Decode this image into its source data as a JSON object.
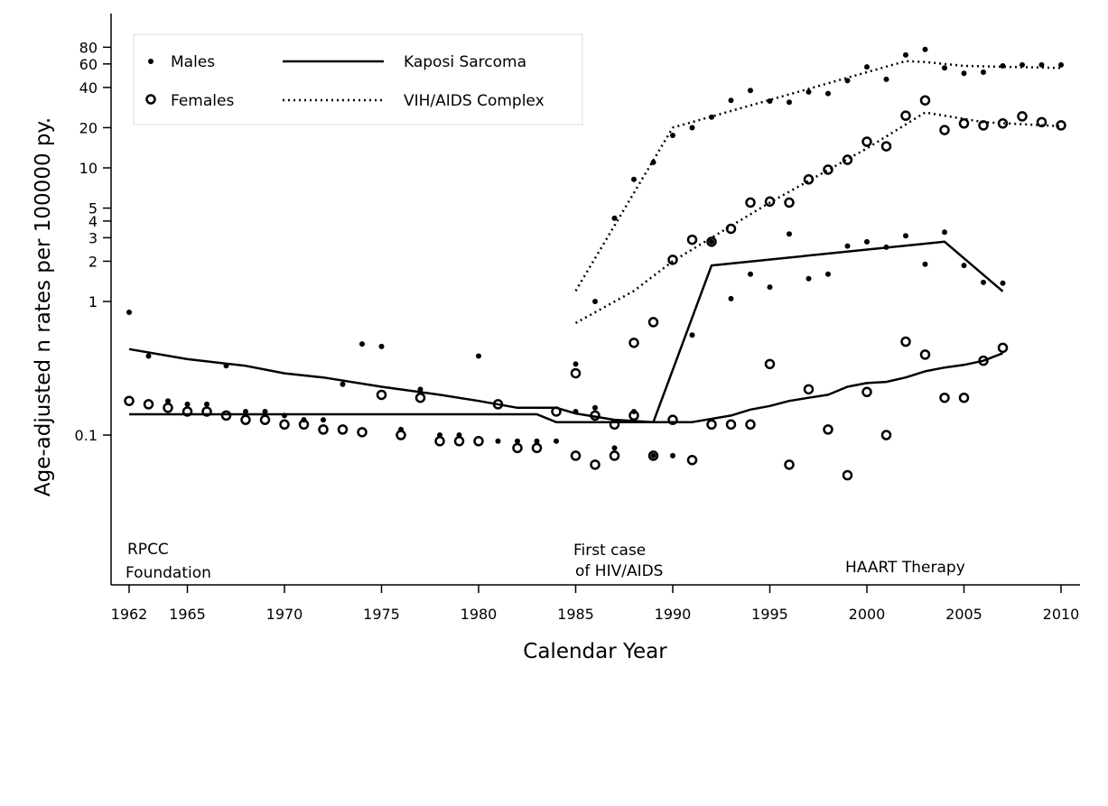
{
  "chart_data": {
    "type": "scatter",
    "title": "",
    "xlabel": "Calendar Year",
    "ylabel": "Age-adjusted n rates per 100000 py.",
    "yscale": "log",
    "xlim": [
      1961.1,
      2010.9
    ],
    "ylim": [
      0.0076,
      130
    ],
    "grid": false,
    "legend_position": "top-left",
    "x_ticks": [
      1962,
      1965,
      1970,
      1975,
      1980,
      1985,
      1990,
      1995,
      2000,
      2005,
      2010
    ],
    "y_ticks": [
      0.1,
      1,
      2,
      3,
      4,
      5,
      10,
      20,
      40,
      60,
      80
    ],
    "legend": {
      "males": "Males",
      "females": "Females",
      "ks": "Kaposi Sarcoma",
      "hiv": "VIH/AIDS Complex"
    },
    "annotations": [
      {
        "lines": [
          "RPCC",
          "Foundation"
        ],
        "x": 1962
      },
      {
        "lines": [
          "First case",
          "of HIV/AIDS"
        ],
        "x": 1985
      },
      {
        "lines": [
          "HAART Therapy"
        ],
        "x": 1999
      }
    ],
    "points": [
      {
        "name": "Males - Kaposi Sarcoma",
        "marker": "dot",
        "x": [
          1962,
          1963,
          1964,
          1965,
          1966,
          1967,
          1968,
          1969,
          1970,
          1971,
          1972,
          1973,
          1974,
          1975,
          1976,
          1977,
          1978,
          1979,
          1980,
          1981,
          1982,
          1983,
          1984,
          1985,
          1986,
          1987,
          1988,
          1989,
          1990,
          1991,
          1992,
          1993,
          1994,
          1995,
          1996,
          1997,
          1998,
          1999,
          2000,
          2001,
          2002,
          2003,
          2004,
          2005,
          2006,
          2007
        ],
        "y": [
          0.83,
          0.39,
          0.18,
          0.17,
          0.17,
          0.33,
          0.15,
          0.15,
          0.14,
          0.13,
          0.13,
          0.24,
          0.48,
          0.46,
          0.11,
          0.22,
          0.1,
          0.1,
          0.39,
          0.09,
          0.09,
          0.09,
          0.09,
          0.15,
          0.16,
          0.08,
          0.15,
          0.07,
          0.07,
          0.56,
          2.8,
          1.05,
          1.6,
          1.28,
          3.2,
          1.48,
          1.6,
          2.6,
          2.8,
          2.55,
          3.1,
          1.9,
          3.3,
          1.86,
          1.39,
          1.37
        ]
      },
      {
        "name": "Females - Kaposi Sarcoma",
        "marker": "circle",
        "x": [
          1962,
          1963,
          1964,
          1965,
          1966,
          1967,
          1968,
          1969,
          1970,
          1971,
          1972,
          1973,
          1974,
          1975,
          1976,
          1977,
          1978,
          1979,
          1980,
          1981,
          1982,
          1983,
          1984,
          1985,
          1986,
          1987,
          1988,
          1989,
          1990,
          1991,
          1992,
          1993,
          1994,
          1995,
          1996,
          1997,
          1998,
          1999,
          2000,
          2001,
          2002,
          2003,
          2004,
          2005,
          2006,
          2007
        ],
        "y": [
          0.18,
          0.17,
          0.16,
          0.15,
          0.15,
          0.14,
          0.13,
          0.13,
          0.12,
          0.12,
          0.11,
          0.11,
          0.105,
          0.2,
          0.1,
          0.19,
          0.09,
          0.09,
          0.09,
          0.17,
          0.08,
          0.08,
          0.15,
          0.07,
          0.06,
          0.07,
          0.14,
          0.07,
          0.13,
          0.065,
          0.12,
          0.12,
          0.12,
          0.34,
          0.06,
          0.22,
          0.11,
          0.05,
          0.21,
          0.1,
          0.5,
          0.4,
          0.19,
          0.19,
          0.36,
          0.45
        ]
      },
      {
        "name": "Males - VIH/AIDS Complex",
        "marker": "dot",
        "x": [
          1985,
          1986,
          1987,
          1988,
          1989,
          1990,
          1991,
          1992,
          1993,
          1994,
          1995,
          1996,
          1997,
          1998,
          1999,
          2000,
          2001,
          2002,
          2003,
          2004,
          2005,
          2006,
          2007,
          2008,
          2009,
          2010
        ],
        "y": [
          0.34,
          1.0,
          4.2,
          8.2,
          11,
          17.5,
          20,
          24,
          32,
          38,
          31.6,
          31,
          37,
          36,
          45,
          57,
          46,
          70,
          77,
          56,
          51,
          52,
          58,
          59,
          59,
          59
        ]
      },
      {
        "name": "Females - VIH/AIDS Complex",
        "marker": "circle",
        "x": [
          1985,
          1986,
          1987,
          1988,
          1989,
          1990,
          1991,
          1992,
          1993,
          1994,
          1995,
          1996,
          1997,
          1998,
          1999,
          2000,
          2001,
          2002,
          2003,
          2004,
          2005,
          2006,
          2007,
          2008,
          2009,
          2010
        ],
        "y": [
          0.29,
          0.14,
          0.12,
          0.49,
          0.7,
          2.05,
          2.9,
          2.8,
          3.5,
          5.5,
          5.6,
          5.5,
          8.2,
          9.7,
          11.5,
          15.7,
          14.5,
          24.6,
          32,
          19.2,
          21.5,
          20.8,
          21.5,
          24.3,
          22,
          20.8
        ]
      }
    ],
    "lines": [
      {
        "name": "Males - Kaposi Sarcoma fit",
        "style": "solid",
        "x": [
          1962,
          1965,
          1968,
          1970,
          1972,
          1975,
          1978,
          1980,
          1982,
          1984,
          1985,
          1987,
          1989,
          1992,
          2004,
          2007
        ],
        "y": [
          0.44,
          0.37,
          0.33,
          0.29,
          0.27,
          0.23,
          0.2,
          0.18,
          0.16,
          0.16,
          0.145,
          0.13,
          0.125,
          1.86,
          2.8,
          1.19
        ]
      },
      {
        "name": "Females - Kaposi Sarcoma fit",
        "style": "solid",
        "x": [
          1962,
          1983,
          1984,
          1991,
          1993,
          1994,
          1995,
          1996,
          1997,
          1998,
          1999,
          2000,
          2001,
          2002,
          2003,
          2004,
          2005,
          2006,
          2007
        ],
        "y": [
          0.143,
          0.143,
          0.125,
          0.125,
          0.14,
          0.155,
          0.165,
          0.18,
          0.19,
          0.2,
          0.23,
          0.245,
          0.25,
          0.27,
          0.3,
          0.32,
          0.335,
          0.36,
          0.41
        ]
      },
      {
        "name": "Males - VIH/AIDS Complex fit",
        "style": "dotted",
        "x": [
          1985,
          1990,
          2002,
          2003,
          2005,
          2010
        ],
        "y": [
          1.2,
          20,
          63,
          62,
          58,
          56
        ]
      },
      {
        "name": "Females - VIH/AIDS Complex fit",
        "style": "dotted",
        "x": [
          1985,
          1988,
          1990,
          1995,
          2000,
          2003,
          2006,
          2010
        ],
        "y": [
          0.69,
          1.2,
          2.0,
          5.5,
          14,
          26,
          22,
          20.5
        ]
      }
    ]
  }
}
